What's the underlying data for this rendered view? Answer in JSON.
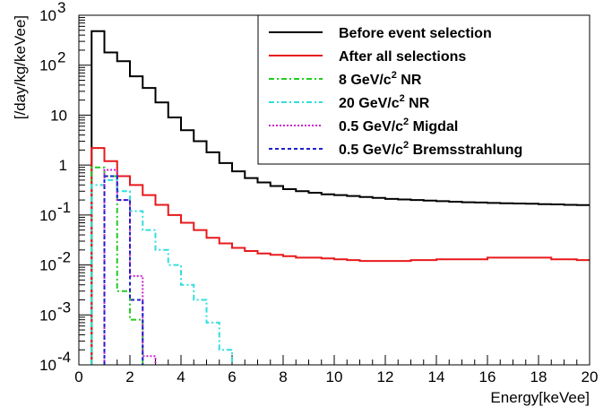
{
  "chart_data": {
    "type": "line",
    "title": "",
    "xlabel": "Energy[keVee]",
    "ylabel": "[/day/kg/keVee]",
    "xlim": [
      0,
      20
    ],
    "ylim": [
      0.0001,
      1000
    ],
    "yscale": "log",
    "grid": false,
    "legend_position": "top-right",
    "x_ticks": [
      "0",
      "2",
      "4",
      "6",
      "8",
      "10",
      "12",
      "14",
      "16",
      "18",
      "20"
    ],
    "y_ticks": [
      {
        "value": 0.0001,
        "base": "10",
        "exp": "-4"
      },
      {
        "value": 0.001,
        "base": "10",
        "exp": "-3"
      },
      {
        "value": 0.01,
        "base": "10",
        "exp": "-2"
      },
      {
        "value": 0.1,
        "base": "10",
        "exp": "-1"
      },
      {
        "value": 1,
        "base": "1",
        "exp": ""
      },
      {
        "value": 10,
        "base": "10",
        "exp": ""
      },
      {
        "value": 100,
        "base": "10",
        "exp": "2"
      },
      {
        "value": 1000,
        "base": "10",
        "exp": "3"
      }
    ],
    "series": [
      {
        "name": "Before event selection",
        "color": "#000000",
        "dash": "",
        "x": [
          0.5,
          1.0,
          1.5,
          2.0,
          2.5,
          3.0,
          3.5,
          4.0,
          4.5,
          5.0,
          5.5,
          6.0,
          6.5,
          7.0,
          7.5,
          8.0,
          8.5,
          9.0,
          9.5,
          10.0,
          10.5,
          11.0,
          11.5,
          12.0,
          12.5,
          13.0,
          13.5,
          14.0,
          14.5,
          15.0,
          15.5,
          16.0,
          16.5,
          17.0,
          17.5,
          18.0,
          18.5,
          19.0,
          19.5
        ],
        "y": [
          480,
          180,
          120,
          60,
          35,
          18,
          9,
          5,
          3,
          1.8,
          1.1,
          0.75,
          0.55,
          0.45,
          0.38,
          0.33,
          0.3,
          0.28,
          0.26,
          0.25,
          0.24,
          0.23,
          0.22,
          0.21,
          0.205,
          0.2,
          0.195,
          0.19,
          0.185,
          0.18,
          0.178,
          0.175,
          0.172,
          0.17,
          0.168,
          0.165,
          0.163,
          0.16,
          0.158
        ]
      },
      {
        "name": "After all selections",
        "color": "#e8191c",
        "dash": "",
        "x": [
          0.5,
          1.0,
          1.5,
          2.0,
          2.5,
          3.0,
          3.5,
          4.0,
          4.5,
          5.0,
          5.5,
          6.0,
          6.5,
          7.0,
          7.5,
          8.0,
          8.5,
          9.0,
          9.5,
          10.0,
          10.5,
          11.0,
          11.5,
          12.0,
          12.5,
          13.0,
          13.5,
          14.0,
          14.5,
          15.0,
          15.5,
          16.0,
          16.5,
          17.0,
          17.5,
          18.0,
          18.5,
          19.0,
          19.5
        ],
        "y": [
          2.2,
          1.2,
          0.6,
          0.4,
          0.25,
          0.16,
          0.1,
          0.07,
          0.05,
          0.035,
          0.027,
          0.022,
          0.019,
          0.017,
          0.016,
          0.015,
          0.014,
          0.014,
          0.0135,
          0.013,
          0.0125,
          0.012,
          0.012,
          0.012,
          0.012,
          0.0125,
          0.0125,
          0.013,
          0.013,
          0.013,
          0.013,
          0.014,
          0.014,
          0.014,
          0.014,
          0.014,
          0.013,
          0.013,
          0.0125
        ]
      },
      {
        "name": "8 GeV/c2 NR",
        "color": "#22cc22",
        "dash": "6,3,2,3",
        "x": [
          0.5,
          1.0,
          1.5,
          2.0
        ],
        "y": [
          0.9,
          0.6,
          0.003,
          0.0008
        ]
      },
      {
        "name": "20 GeV/c2 NR",
        "color": "#33dddd",
        "dash": "6,3,2,3",
        "x": [
          0.5,
          1.0,
          1.5,
          2.0,
          2.5,
          3.0,
          3.5,
          4.0,
          4.5,
          5.0,
          5.5
        ],
        "y": [
          0.4,
          0.5,
          0.3,
          0.12,
          0.05,
          0.02,
          0.01,
          0.004,
          0.002,
          0.0007,
          0.0002
        ]
      },
      {
        "name": "0.5 GeV/c2 Migdal",
        "color": "#cc22cc",
        "dash": "2,2",
        "x": [
          1.0,
          1.5,
          2.0,
          2.5
        ],
        "y": [
          0.8,
          0.2,
          0.006,
          0.00015
        ]
      },
      {
        "name": "0.5 GeV/c2 Bremsstrahlung",
        "color": "#1f1fcc",
        "dash": "4,3",
        "x": [
          1.0,
          1.5,
          2.0
        ],
        "y": [
          0.6,
          0.2,
          0.002
        ]
      }
    ],
    "legend": {
      "labels": [
        {
          "base": "Before event selection",
          "sup": "",
          "tail": ""
        },
        {
          "base": "After all selections",
          "sup": "",
          "tail": ""
        },
        {
          "base": "8 GeV/c",
          "sup": "2",
          "tail": " NR"
        },
        {
          "base": "20 GeV/c",
          "sup": "2",
          "tail": " NR"
        },
        {
          "base": "0.5 GeV/c",
          "sup": "2",
          "tail": " Migdal"
        },
        {
          "base": "0.5 GeV/c",
          "sup": "2",
          "tail": " Bremsstrahlung"
        }
      ]
    }
  }
}
